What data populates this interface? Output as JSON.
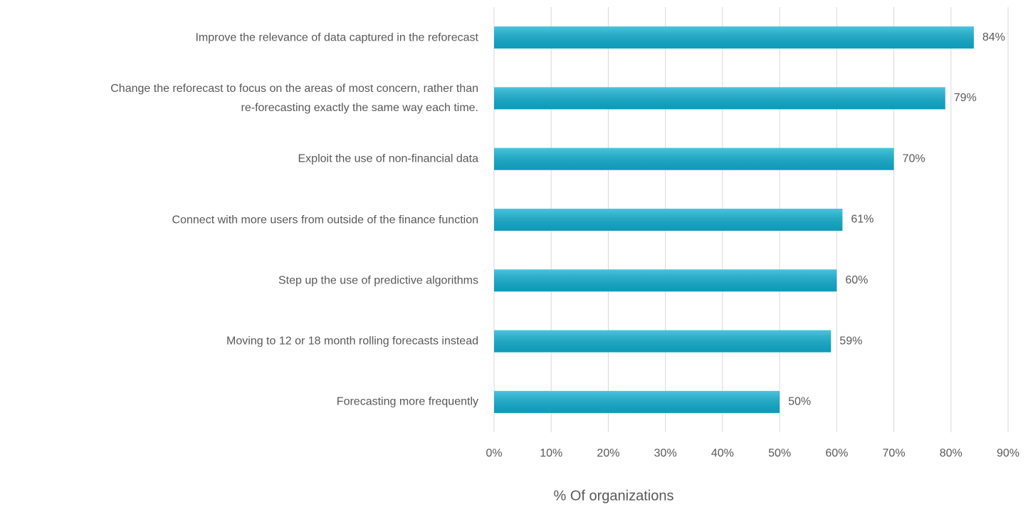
{
  "chart_data": {
    "type": "bar",
    "orientation": "horizontal",
    "x_label": "% Of organizations",
    "categories": [
      "Improve the relevance of data captured in the reforecast",
      "Change the reforecast to focus on the areas of most concern, rather than\nre-forecasting exactly the same way each time.",
      "Exploit the use of non-financial data",
      "Connect with more users from outside of the finance function",
      "Step up the use of predictive algorithms",
      "Moving to 12 or 18 month rolling forecasts instead",
      "Forecasting more frequently"
    ],
    "values": [
      84,
      79,
      70,
      61,
      60,
      59,
      50
    ],
    "value_labels": [
      "84%",
      "79%",
      "70%",
      "61%",
      "60%",
      "59%",
      "50%"
    ],
    "color": "#0fb0d2",
    "xlim": [
      0,
      90
    ],
    "xticks": [
      {
        "value": 0,
        "label": "0%"
      },
      {
        "value": 10,
        "label": "10%"
      },
      {
        "value": 20,
        "label": "20%"
      },
      {
        "value": 30,
        "label": "30%"
      },
      {
        "value": 40,
        "label": "40%"
      },
      {
        "value": 50,
        "label": "50%"
      },
      {
        "value": 60,
        "label": "60%"
      },
      {
        "value": 70,
        "label": "70%"
      },
      {
        "value": 80,
        "label": "80%"
      },
      {
        "value": 90,
        "label": "90%"
      }
    ],
    "grid": true
  }
}
